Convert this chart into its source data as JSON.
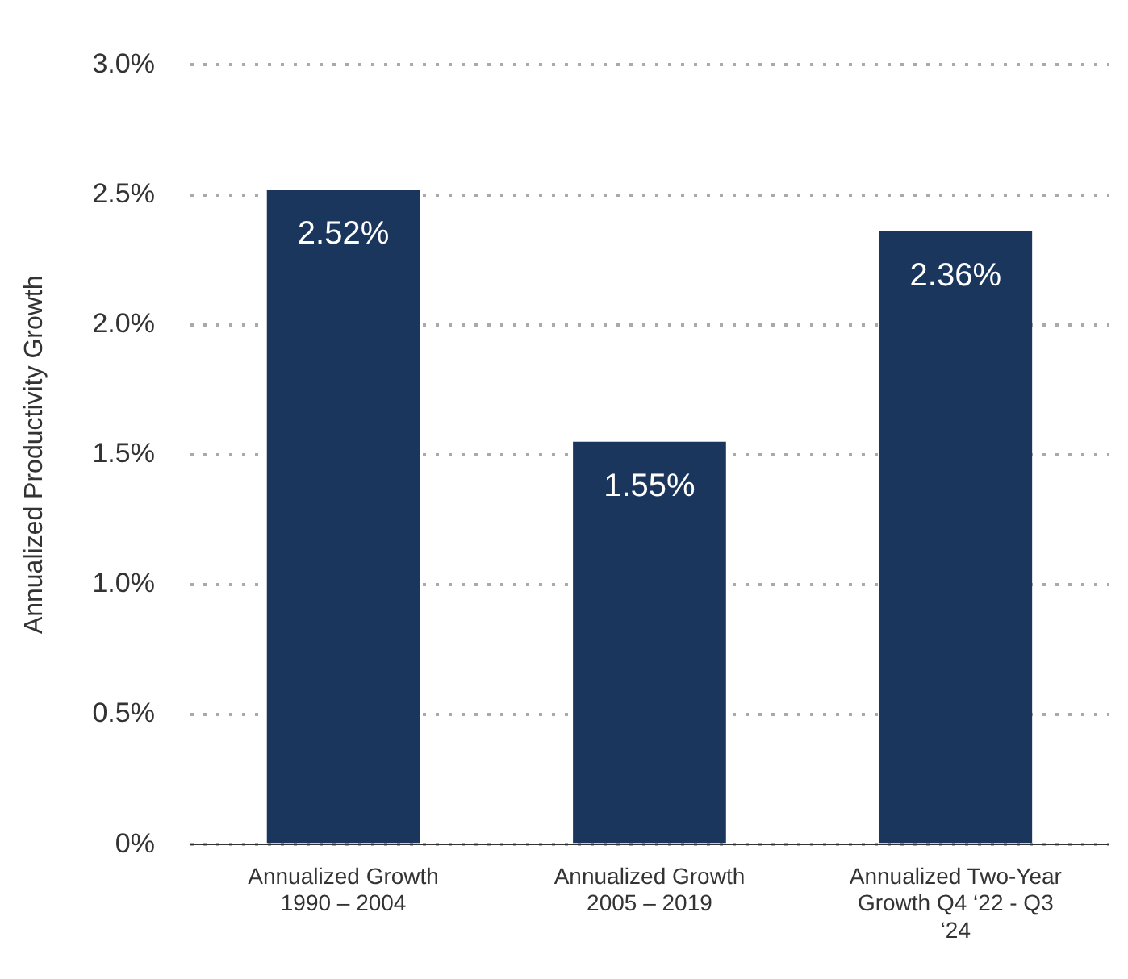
{
  "chart_data": {
    "type": "bar",
    "ylabel": "Annualized Productivity Growth",
    "categories": [
      "Annualized Growth 1990 – 2004",
      "Annualized Growth 2005 – 2019",
      "Annualized Two-Year Growth Q4 ‘22 - Q3 ‘24"
    ],
    "values": [
      2.52,
      1.55,
      2.36
    ],
    "color": "#1b365d",
    "value_labels": [
      "2.52%",
      "1.55%",
      "2.36%"
    ],
    "ylim": [
      0,
      3
    ],
    "yticks": [
      {
        "value": 0,
        "label": "0%"
      },
      {
        "value": 0.5,
        "label": "0.5%"
      },
      {
        "value": 1,
        "label": "1.0%"
      },
      {
        "value": 1.5,
        "label": "1.5%"
      },
      {
        "value": 2,
        "label": "2.0%"
      },
      {
        "value": 2.5,
        "label": "2.5%"
      },
      {
        "value": 3,
        "label": "3.0%"
      }
    ],
    "grid": "y"
  }
}
